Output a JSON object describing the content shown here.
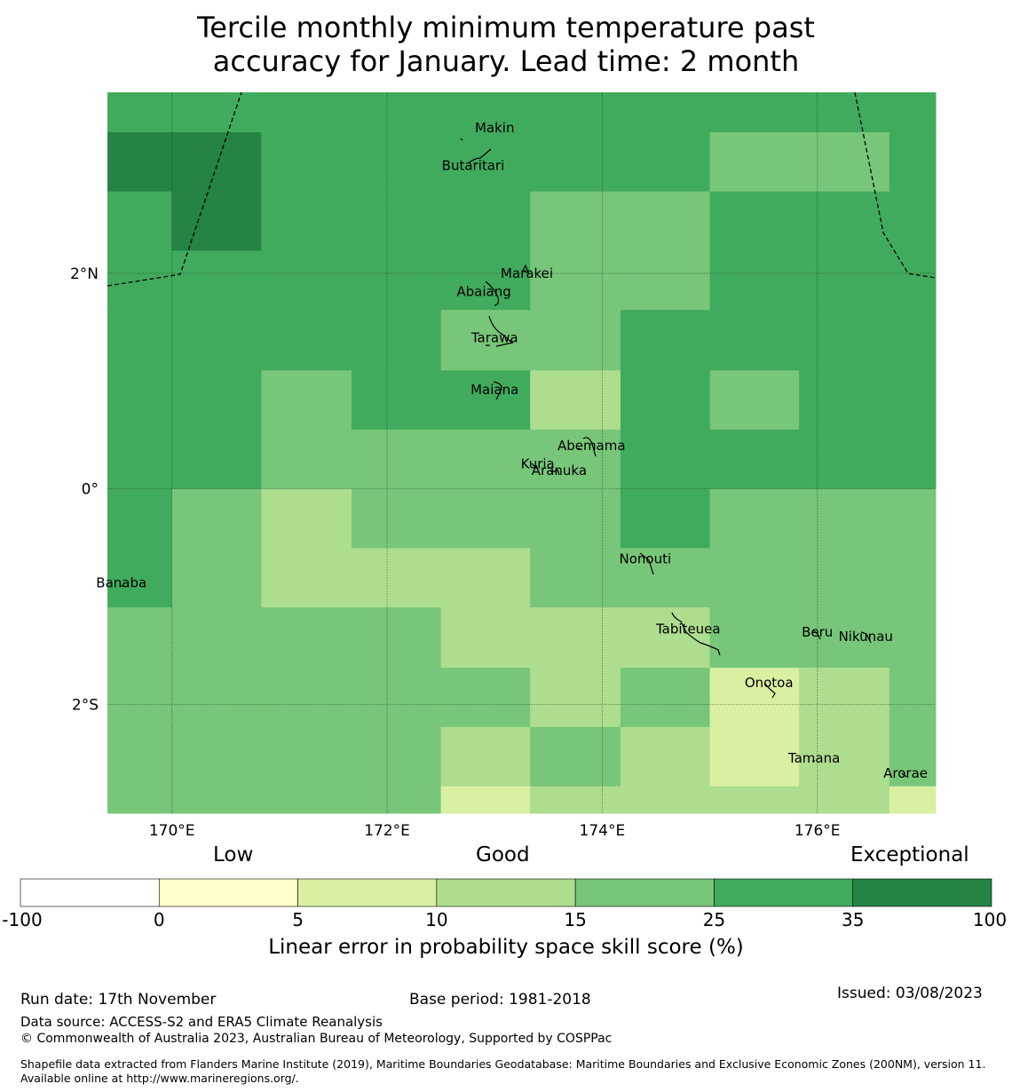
{
  "title": {
    "line1": "Tercile monthly minimum temperature past",
    "line2": "accuracy for January. Lead time: 2 month"
  },
  "map": {
    "lon_range": [
      169.4,
      177.1
    ],
    "lat_range": [
      -3.01,
      3.68
    ],
    "x_ticks": [
      {
        "lon": 170,
        "label": "170°E"
      },
      {
        "lon": 172,
        "label": "172°E"
      },
      {
        "lon": 174,
        "label": "174°E"
      },
      {
        "lon": 176,
        "label": "176°E"
      }
    ],
    "y_ticks": [
      {
        "lat": 2,
        "label": "2°N"
      },
      {
        "lat": 0,
        "label": "0°"
      },
      {
        "lat": -2,
        "label": "2°S"
      }
    ],
    "skill_grid": {
      "lon_edges": [
        169.4,
        170.0,
        170.83,
        171.67,
        172.5,
        173.33,
        174.17,
        175.0,
        175.83,
        176.67,
        177.1
      ],
      "lat_edges": [
        3.68,
        3.31,
        2.76,
        2.21,
        1.66,
        1.1,
        0.55,
        0.0,
        -0.55,
        -1.1,
        -1.66,
        -2.21,
        -2.76,
        -3.01
      ],
      "values": [
        [
          30,
          30,
          30,
          30,
          30,
          30,
          30,
          30,
          30,
          30
        ],
        [
          40,
          40,
          30,
          30,
          30,
          30,
          30,
          20,
          20,
          30
        ],
        [
          30,
          40,
          30,
          30,
          30,
          20,
          20,
          30,
          30,
          30
        ],
        [
          30,
          30,
          30,
          30,
          30,
          20,
          20,
          30,
          30,
          30
        ],
        [
          30,
          30,
          30,
          30,
          20,
          20,
          30,
          30,
          30,
          30
        ],
        [
          30,
          30,
          20,
          30,
          30,
          12,
          30,
          20,
          30,
          30
        ],
        [
          30,
          30,
          20,
          20,
          20,
          20,
          30,
          30,
          30,
          30
        ],
        [
          30,
          20,
          12,
          20,
          20,
          20,
          30,
          20,
          20,
          20
        ],
        [
          30,
          20,
          12,
          12,
          12,
          20,
          20,
          20,
          20,
          20
        ],
        [
          20,
          20,
          20,
          20,
          12,
          12,
          12,
          20,
          20,
          20
        ],
        [
          20,
          20,
          20,
          20,
          20,
          12,
          20,
          7,
          12,
          20
        ],
        [
          20,
          20,
          20,
          20,
          12,
          20,
          12,
          7,
          12,
          20
        ],
        [
          20,
          20,
          20,
          20,
          7,
          12,
          12,
          12,
          12,
          7
        ]
      ]
    },
    "islands": [
      {
        "name": "Makin",
        "lon": 173.0,
        "lat": 3.35
      },
      {
        "name": "Butaritari",
        "lon": 172.8,
        "lat": 3.0
      },
      {
        "name": "Marakei",
        "lon": 173.3,
        "lat": 2.0
      },
      {
        "name": "Abaiang",
        "lon": 172.9,
        "lat": 1.83
      },
      {
        "name": "Tarawa",
        "lon": 173.0,
        "lat": 1.4
      },
      {
        "name": "Maiana",
        "lon": 173.0,
        "lat": 0.92
      },
      {
        "name": "Abemama",
        "lon": 173.9,
        "lat": 0.4
      },
      {
        "name": "Kuria",
        "lon": 173.4,
        "lat": 0.23
      },
      {
        "name": "Aranuka",
        "lon": 173.6,
        "lat": 0.17
      },
      {
        "name": "Nonouti",
        "lon": 174.4,
        "lat": -0.65
      },
      {
        "name": "Banaba",
        "lon": 169.53,
        "lat": -0.87
      },
      {
        "name": "Tabiteuea",
        "lon": 174.8,
        "lat": -1.3
      },
      {
        "name": "Beru",
        "lon": 176.0,
        "lat": -1.33
      },
      {
        "name": "Nikunau",
        "lon": 176.45,
        "lat": -1.37
      },
      {
        "name": "Onotoa",
        "lon": 175.55,
        "lat": -1.8
      },
      {
        "name": "Tamana",
        "lon": 175.97,
        "lat": -2.5
      },
      {
        "name": "Arorae",
        "lon": 176.82,
        "lat": -2.64
      }
    ]
  },
  "colorbar": {
    "category_low": "Low",
    "category_good": "Good",
    "category_exceptional": "Exceptional",
    "ticks": [
      "-100",
      "0",
      "5",
      "10",
      "15",
      "25",
      "35",
      "100"
    ],
    "colors": [
      "#ffffff",
      "#ffffcc",
      "#d9f0a3",
      "#addd8e",
      "#78c679",
      "#41ab5d",
      "#238443"
    ],
    "title": "Linear error in probability space skill score (%)"
  },
  "footer": {
    "run_date": "Run date: 17th November",
    "base_period": "Base period: 1981-2018",
    "issued": "Issued: 03/08/2023",
    "data_source": "Data source: ACCESS-S2 and ERA5 Climate Reanalysis",
    "copyright": "© Commonwealth of Australia 2023, Australian Bureau of Meteorology, Supported by COSPPac",
    "shapefile": "Shapefile data extracted from Flanders Marine Institute (2019), Maritime Boundaries Geodatabase: Maritime Boundaries and Exclusive Economic Zones (200NM), version 11. Available online at http://www.marineregions.org/."
  }
}
